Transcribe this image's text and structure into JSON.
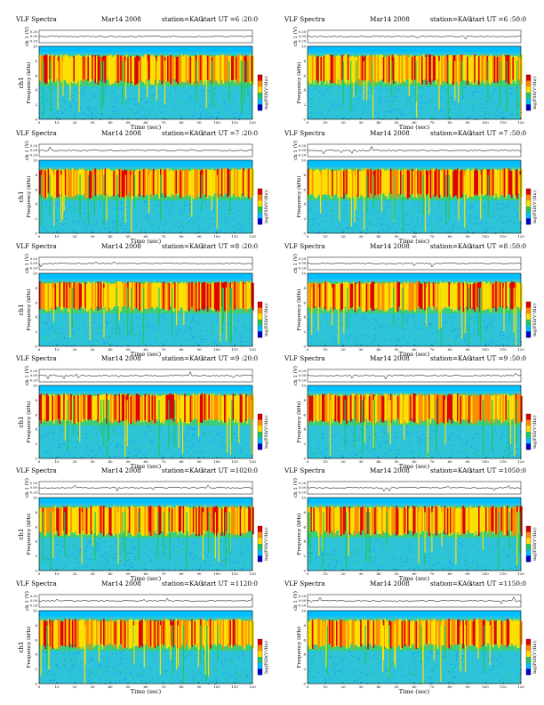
{
  "header": {
    "title": "VLF  Spectra",
    "date": "Mar14 2008",
    "station": "station=KAG",
    "start_prefix": "start  UT  ="
  },
  "axes": {
    "ch1_label": "ch 1 (V)",
    "freq_label": "Frequency  (kHz)",
    "ch1_panel_label": "ch1",
    "time_label": "Time  (sec)",
    "colorbar_label": "log(PSD(V²/Hz))",
    "x_ticks": [
      "0",
      "10",
      "20",
      "30",
      "40",
      "50",
      "60",
      "70",
      "80",
      "90",
      "100",
      "110",
      "120"
    ],
    "y_ticks": [
      "0",
      "2",
      "4",
      "6",
      "8",
      "10"
    ],
    "ch1_ticks": [
      "0.20",
      "0.00",
      "-0.20"
    ]
  },
  "panels": [
    {
      "start": "6 :20:0"
    },
    {
      "start": "6 :50:0"
    },
    {
      "start": "7 :20:0"
    },
    {
      "start": "7 :50:0"
    },
    {
      "start": "8 :20:0"
    },
    {
      "start": "8 :50:0"
    },
    {
      "start": "9 :20:0"
    },
    {
      "start": "9 :50:0"
    },
    {
      "start": "1020:0"
    },
    {
      "start": "1050:0"
    },
    {
      "start": "1120:0"
    },
    {
      "start": "1150:0"
    }
  ],
  "chart_data": {
    "type": "heatmap",
    "panel_count": 12,
    "x_unit": "sec",
    "y_unit": "kHz",
    "xlim": [
      0,
      120
    ],
    "ylim": [
      0,
      10
    ],
    "ch1_ylim": [
      -0.2,
      0.2
    ],
    "colormap": [
      "#0000cc",
      "#00bfff",
      "#22c55e",
      "#ffe000",
      "#ff8c00",
      "#e00000"
    ],
    "dominant_band_khz": [
      5.5,
      8.5
    ],
    "background_band_khz": [
      0,
      10
    ],
    "top_cyan_band_khz": [
      9.2,
      10
    ]
  }
}
